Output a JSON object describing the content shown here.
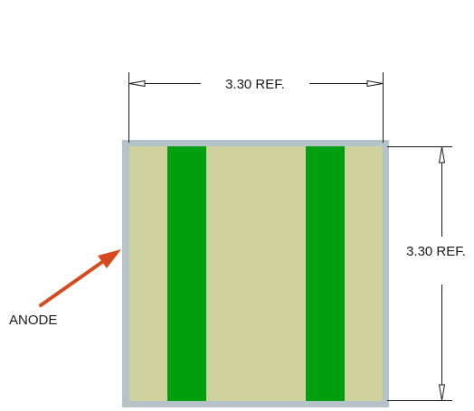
{
  "dimensions": {
    "width_label": "3.30 REF.",
    "height_label": "3.30 REF."
  },
  "callouts": {
    "anode_label": "ANODE"
  },
  "colors": {
    "package_outline": "#b4c3c8",
    "package_body": "#cfd29f",
    "stripe": "#009f0f",
    "arrow": "#d54b1e",
    "dimension_line": "#1a1a1a"
  }
}
